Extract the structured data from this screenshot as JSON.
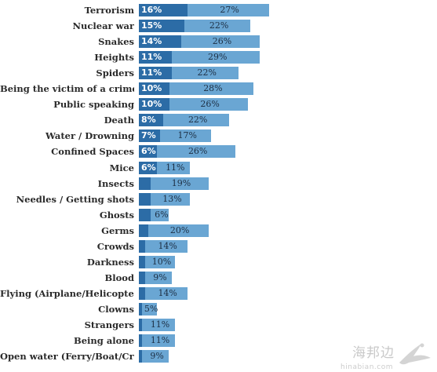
{
  "chart_data": {
    "type": "bar",
    "stacked": true,
    "title": "",
    "xlabel": "",
    "ylabel": "",
    "categories": [
      "Terrorism",
      "Nuclear war",
      "Snakes",
      "Heights",
      "Spiders",
      "Being the victim of a crime",
      "Public speaking",
      "Death",
      "Water / Drowning",
      "Confined Spaces",
      "Mice",
      "Insects",
      "Needles / Getting shots",
      "Ghosts",
      "Germs",
      "Crowds",
      "Darkness",
      "Blood",
      "Flying (Airplane/Helicopter)",
      "Clowns",
      "Strangers",
      "Being alone",
      "Open water (Ferry/Boat/Crui..."
    ],
    "series": [
      {
        "values": [
          16,
          15,
          14,
          11,
          11,
          10,
          10,
          8,
          7,
          6,
          6,
          null,
          null,
          null,
          null,
          null,
          null,
          null,
          null,
          null,
          null,
          null,
          null
        ],
        "color": "#2c6ca6"
      },
      {
        "values": [
          27,
          22,
          26,
          29,
          22,
          28,
          26,
          22,
          17,
          26,
          11,
          19,
          13,
          6,
          20,
          14,
          10,
          9,
          14,
          5,
          11,
          11,
          9
        ],
        "color": "#6aa6d3"
      }
    ],
    "display_a": [
      "16%",
      "15%",
      "14%",
      "11%",
      "11%",
      "10%",
      "10%",
      "8%",
      "7%",
      "6%",
      "6%",
      "",
      "",
      "",
      "",
      "",
      "",
      "",
      "",
      "",
      "",
      "",
      ""
    ],
    "display_b": [
      "27%",
      "22%",
      "26%",
      "29%",
      "22%",
      "28%",
      "26%",
      "22%",
      "17%",
      "26%",
      "11%",
      "19%",
      "13%",
      "6%",
      "20%",
      "14%",
      "10%",
      "9%",
      "14%",
      "5%",
      "11%",
      "11%",
      "9%"
    ],
    "unlabeled_dark_values": [
      null,
      null,
      null,
      null,
      null,
      null,
      null,
      null,
      null,
      null,
      null,
      4,
      4,
      4,
      3,
      2,
      2,
      2,
      2,
      1,
      1,
      1,
      1
    ],
    "legend": "none",
    "grid": false
  },
  "watermark": {
    "text": "海邦边",
    "url": "hinabian.com",
    "logo_icon": "crane-logo-icon"
  }
}
